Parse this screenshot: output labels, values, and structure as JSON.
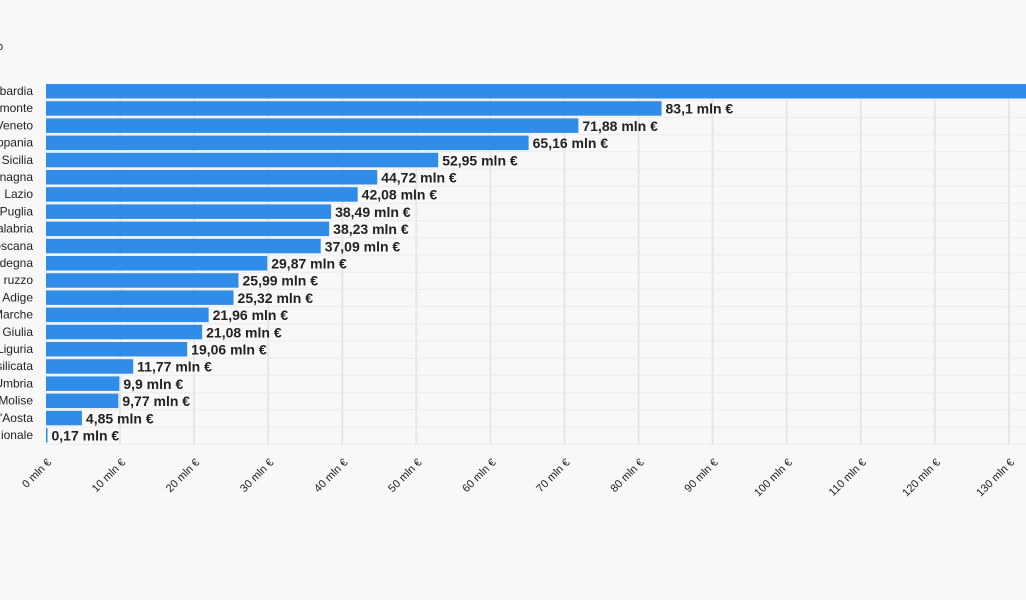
{
  "page": {
    "corner_mark": "o"
  },
  "chart_data": {
    "type": "bar",
    "orientation": "horizontal",
    "categories": [
      "bardia",
      "monte",
      "Veneto",
      "ppania",
      "Sicilia",
      "nagna",
      "Lazio",
      "Puglia",
      "alabria",
      "oscana",
      "rdegna",
      "ruzzo",
      "Adige",
      "Marche",
      "Giulia",
      "Liguria",
      "silicata",
      "Umbria",
      "Molise",
      "'Aosta",
      "ionale"
    ],
    "values": [
      134.5,
      83.1,
      71.88,
      65.16,
      52.95,
      44.72,
      42.08,
      38.49,
      38.23,
      37.09,
      29.87,
      25.99,
      25.32,
      21.96,
      21.08,
      19.06,
      11.77,
      9.9,
      9.77,
      4.85,
      0.17
    ],
    "value_labels": [
      "",
      "83,1 mln €",
      "71,88 mln €",
      "65,16 mln €",
      "52,95 mln €",
      "44,72 mln €",
      "42,08 mln €",
      "38,49 mln €",
      "38,23 mln €",
      "37,09 mln €",
      "29,87 mln €",
      "25,99 mln €",
      "25,32 mln €",
      "21,96 mln €",
      "21,08 mln €",
      "19,06 mln €",
      "11,77 mln €",
      "9,9 mln €",
      "9,77 mln €",
      "4,85 mln €",
      "0,17 mln €"
    ],
    "x_ticks": [
      0,
      10,
      20,
      30,
      40,
      50,
      60,
      70,
      80,
      90,
      100,
      110,
      120,
      130
    ],
    "x_tick_labels": [
      "0 mln €",
      "10 mln €",
      "20 mln €",
      "30 mln €",
      "40 mln €",
      "50 mln €",
      "60 mln €",
      "70 mln €",
      "80 mln €",
      "90 mln €",
      "100 mln €",
      "110 mln €",
      "120 mln €",
      "130 mln €"
    ],
    "xlim": [
      0,
      131.5
    ],
    "bar_color": "#2f8ce8",
    "grid": true,
    "title": "",
    "xlabel": "",
    "ylabel": ""
  }
}
